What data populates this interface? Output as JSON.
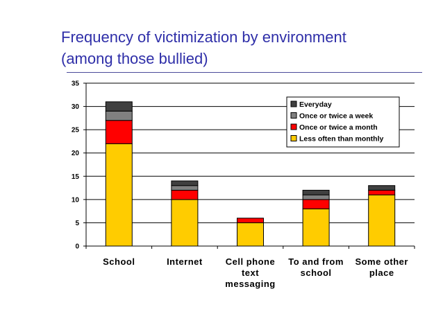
{
  "slide": {
    "title_line1": "Frequency of victimization by environment",
    "title_line2": "(among those bullied)"
  },
  "chart_data": {
    "type": "bar",
    "stacked": true,
    "categories": [
      [
        "School"
      ],
      [
        "Internet"
      ],
      [
        "Cell phone",
        "text",
        "messaging"
      ],
      [
        "To and from",
        "school"
      ],
      [
        "Some other",
        "place"
      ]
    ],
    "series": [
      {
        "name": "Less often than monthly",
        "color": "#ffcc00",
        "values": [
          22,
          10,
          5,
          8,
          11
        ]
      },
      {
        "name": "Once or twice a month",
        "color": "#ff0000",
        "values": [
          5,
          2,
          1,
          2,
          1
        ]
      },
      {
        "name": "Once or twice a week",
        "color": "#808080",
        "values": [
          2,
          1,
          0,
          1,
          0
        ]
      },
      {
        "name": "Everyday",
        "color": "#404040",
        "values": [
          2,
          1,
          0,
          1,
          1
        ]
      }
    ],
    "legend_order": [
      "Everyday",
      "Once or twice a week",
      "Once or twice a month",
      "Less often than monthly"
    ],
    "ylim": [
      0,
      35
    ],
    "yticks": [
      0,
      5,
      10,
      15,
      20,
      25,
      30,
      35
    ],
    "grid": true,
    "legend_position": "top-right"
  }
}
